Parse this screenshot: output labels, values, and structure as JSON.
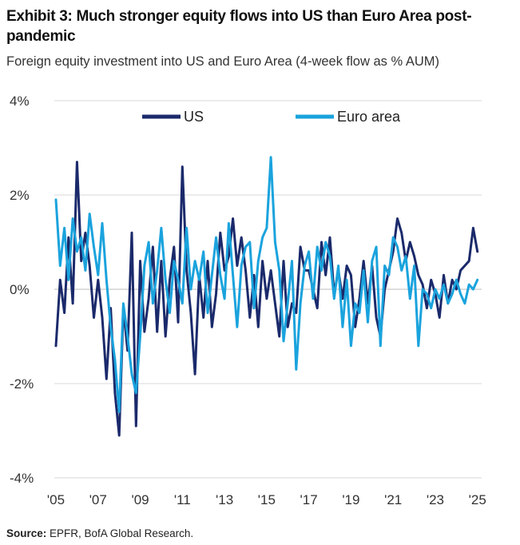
{
  "header": {
    "title": "Exhibit 3: Much stronger equity flows into US than Euro Area post-pandemic",
    "subtitle": "Foreign equity investment into US and Euro Area (4-week flow as % AUM)"
  },
  "footer": {
    "source_label": "Source:",
    "source_text": "EPFR, BofA Global Research."
  },
  "colors": {
    "us": "#1b2a6b",
    "euro": "#1aa3dd",
    "grid": "#d9d9d9",
    "zero": "#bdbdbd"
  },
  "chart_data": {
    "type": "line",
    "title": "Foreign equity investment into US and Euro Area (4-week flow as % AUM)",
    "xlabel": "",
    "ylabel": "",
    "xlim": [
      2005,
      2025.2
    ],
    "ylim": [
      -4,
      4
    ],
    "y_ticks": [
      4,
      2,
      0,
      -2,
      -4
    ],
    "y_tick_labels": [
      "4%",
      "2%",
      "0%",
      "-2%",
      "-4%"
    ],
    "x_ticks": [
      2005,
      2007,
      2009,
      2011,
      2013,
      2015,
      2017,
      2019,
      2021,
      2023,
      2025
    ],
    "x_tick_labels": [
      "'05",
      "'07",
      "'09",
      "'11",
      "'13",
      "'15",
      "'17",
      "'19",
      "'21",
      "'23",
      "'25"
    ],
    "legend": [
      "US",
      "Euro area"
    ],
    "legend_position": "top",
    "series": [
      {
        "name": "US",
        "x": [
          2005.0,
          2005.2,
          2005.4,
          2005.6,
          2005.8,
          2006.0,
          2006.2,
          2006.4,
          2006.6,
          2006.8,
          2007.0,
          2007.2,
          2007.4,
          2007.6,
          2007.8,
          2008.0,
          2008.2,
          2008.4,
          2008.6,
          2008.8,
          2009.0,
          2009.2,
          2009.4,
          2009.6,
          2009.8,
          2010.0,
          2010.2,
          2010.4,
          2010.6,
          2010.8,
          2011.0,
          2011.2,
          2011.4,
          2011.6,
          2011.8,
          2012.0,
          2012.2,
          2012.4,
          2012.6,
          2012.8,
          2013.0,
          2013.2,
          2013.4,
          2013.6,
          2013.8,
          2014.0,
          2014.2,
          2014.4,
          2014.6,
          2014.8,
          2015.0,
          2015.2,
          2015.4,
          2015.6,
          2015.8,
          2016.0,
          2016.2,
          2016.4,
          2016.6,
          2016.8,
          2017.0,
          2017.2,
          2017.4,
          2017.6,
          2017.8,
          2018.0,
          2018.2,
          2018.4,
          2018.6,
          2018.8,
          2019.0,
          2019.2,
          2019.4,
          2019.6,
          2019.8,
          2020.0,
          2020.2,
          2020.4,
          2020.6,
          2020.8,
          2021.0,
          2021.2,
          2021.4,
          2021.6,
          2021.8,
          2022.0,
          2022.2,
          2022.4,
          2022.6,
          2022.8,
          2023.0,
          2023.2,
          2023.4,
          2023.6,
          2023.8,
          2024.0,
          2024.2,
          2024.4,
          2024.6,
          2024.8,
          2025.0
        ],
        "values": [
          -1.2,
          0.2,
          -0.5,
          1.1,
          -0.3,
          2.7,
          0.6,
          1.2,
          0.5,
          -0.6,
          0.2,
          -0.6,
          -1.9,
          -0.4,
          -2.2,
          -3.1,
          -0.4,
          -1.3,
          1.2,
          -2.9,
          0.6,
          -0.9,
          -0.2,
          0.9,
          -0.9,
          0.6,
          -1.0,
          0.2,
          0.9,
          -0.7,
          2.6,
          0.4,
          -0.5,
          -1.8,
          0.3,
          -0.6,
          0.6,
          -0.8,
          -0.1,
          1.2,
          0.4,
          0.7,
          1.5,
          0.5,
          1.1,
          0.4,
          -0.6,
          0.3,
          -0.8,
          0.6,
          -0.2,
          0.4,
          -0.3,
          -1.0,
          0.6,
          -0.8,
          -0.3,
          -0.5,
          0.9,
          0.4,
          0.4,
          0.0,
          -0.4,
          1.0,
          0.3,
          1.1,
          -0.1,
          0.4,
          -0.2,
          0.5,
          0.3,
          -0.8,
          -0.2,
          0.6,
          -0.3,
          0.5,
          -0.6,
          -1.0,
          0.0,
          0.4,
          0.8,
          1.5,
          1.2,
          0.6,
          1.0,
          0.7,
          0.3,
          0.1,
          -0.4,
          0.2,
          -0.1,
          -0.6,
          0.3,
          -0.3,
          0.2,
          0.0,
          0.4,
          0.5,
          0.6,
          1.3,
          0.8
        ]
      },
      {
        "name": "Euro area",
        "x": [
          2005.0,
          2005.2,
          2005.4,
          2005.6,
          2005.8,
          2006.0,
          2006.2,
          2006.4,
          2006.6,
          2006.8,
          2007.0,
          2007.2,
          2007.4,
          2007.6,
          2007.8,
          2008.0,
          2008.2,
          2008.4,
          2008.6,
          2008.8,
          2009.0,
          2009.2,
          2009.4,
          2009.6,
          2009.8,
          2010.0,
          2010.2,
          2010.4,
          2010.6,
          2010.8,
          2011.0,
          2011.2,
          2011.4,
          2011.6,
          2011.8,
          2012.0,
          2012.2,
          2012.4,
          2012.6,
          2012.8,
          2013.0,
          2013.2,
          2013.4,
          2013.6,
          2013.8,
          2014.0,
          2014.2,
          2014.4,
          2014.6,
          2014.8,
          2015.0,
          2015.2,
          2015.4,
          2015.6,
          2015.8,
          2016.0,
          2016.2,
          2016.4,
          2016.6,
          2016.8,
          2017.0,
          2017.2,
          2017.4,
          2017.6,
          2017.8,
          2018.0,
          2018.2,
          2018.4,
          2018.6,
          2018.8,
          2019.0,
          2019.2,
          2019.4,
          2019.6,
          2019.8,
          2020.0,
          2020.2,
          2020.4,
          2020.6,
          2020.8,
          2021.0,
          2021.2,
          2021.4,
          2021.6,
          2021.8,
          2022.0,
          2022.2,
          2022.4,
          2022.6,
          2022.8,
          2023.0,
          2023.2,
          2023.4,
          2023.6,
          2023.8,
          2024.0,
          2024.2,
          2024.4,
          2024.6,
          2024.8,
          2025.0
        ],
        "values": [
          1.9,
          0.5,
          1.3,
          0.2,
          1.5,
          0.8,
          1.1,
          0.4,
          1.6,
          0.9,
          0.3,
          1.4,
          0.2,
          -0.8,
          -1.5,
          -2.6,
          -0.3,
          -1.0,
          -1.8,
          -2.2,
          -1.0,
          0.5,
          1.0,
          -0.3,
          0.4,
          1.3,
          0.2,
          -0.5,
          0.6,
          0.2,
          -0.3,
          1.3,
          0.0,
          0.6,
          0.2,
          0.8,
          -0.5,
          0.3,
          1.1,
          0.3,
          -0.2,
          1.4,
          0.3,
          -0.8,
          0.5,
          0.9,
          1.0,
          -0.4,
          0.6,
          1.1,
          1.3,
          2.8,
          1.0,
          0.4,
          -1.1,
          -0.3,
          0.6,
          -1.7,
          -0.3,
          0.5,
          0.8,
          -0.2,
          0.9,
          0.4,
          1.0,
          0.7,
          -0.2,
          0.5,
          -0.8,
          0.2,
          -1.2,
          -0.3,
          -0.5,
          0.4,
          -0.7,
          0.6,
          0.9,
          -1.2,
          0.5,
          0.3,
          1.1,
          0.9,
          0.4,
          0.7,
          -0.2,
          0.5,
          -1.2,
          0.0,
          -0.1,
          -0.4,
          0.0,
          -0.2,
          0.1,
          -0.3,
          -0.1,
          0.2,
          -0.1,
          -0.3,
          0.1,
          0.0,
          0.2
        ]
      }
    ]
  }
}
